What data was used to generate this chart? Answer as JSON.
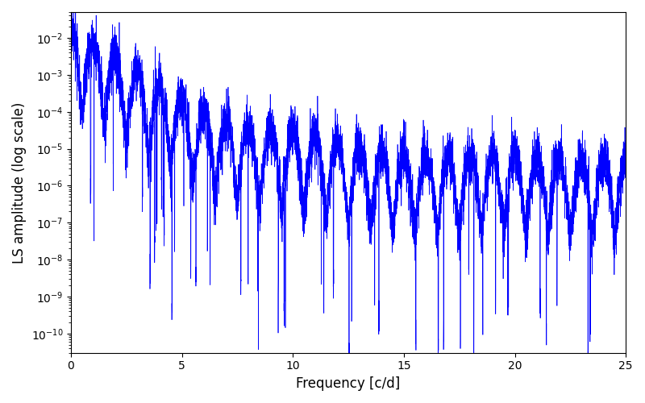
{
  "title": "",
  "xlabel": "Frequency [c/d]",
  "ylabel": "LS amplitude (log scale)",
  "line_color": "#0000ff",
  "line_width": 0.5,
  "xlim": [
    0,
    25
  ],
  "ylim_low": 3e-11,
  "ylim_high": 0.05,
  "yscale": "log",
  "figsize": [
    8.0,
    5.0
  ],
  "dpi": 100,
  "n_points": 8000,
  "freq_max": 25.0,
  "seed": 17,
  "background_color": "#ffffff"
}
